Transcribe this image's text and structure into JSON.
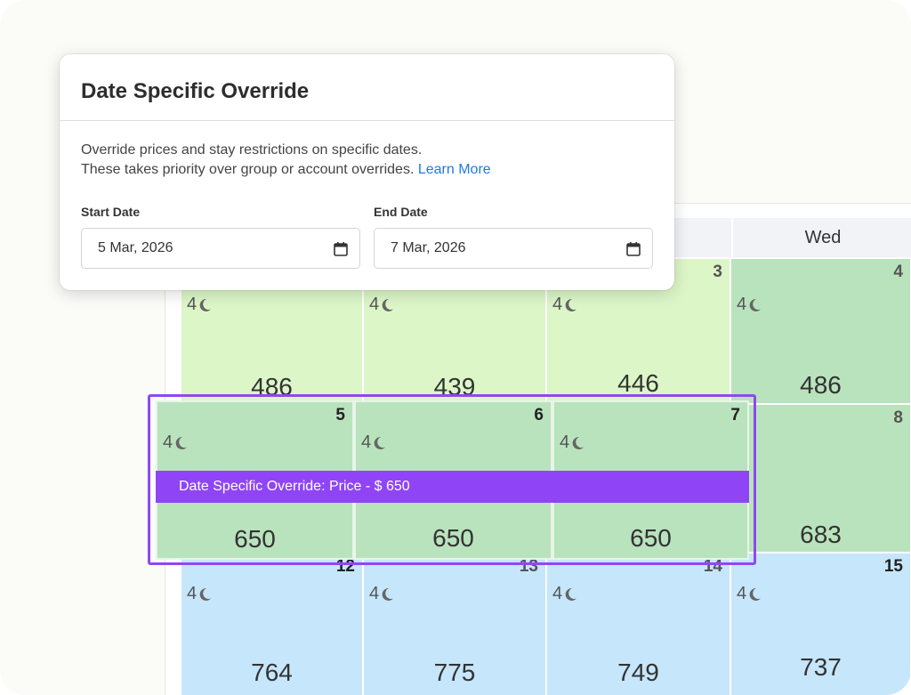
{
  "dialog": {
    "title": "Date Specific Override",
    "description_line1": "Override prices and stay restrictions on specific dates.",
    "description_line2": "These takes priority over group or account overrides.",
    "learn_more": "Learn More",
    "start_label": "Start Date",
    "start_value": "5 Mar, 2026",
    "end_label": "End Date",
    "end_value": "7 Mar, 2026"
  },
  "calendar": {
    "weekday_header": "Wed",
    "min_stay": "4",
    "row1": [
      {
        "day": "",
        "price": "486"
      },
      {
        "day": "",
        "price": "439"
      },
      {
        "day": "3",
        "price": "446"
      },
      {
        "day": "4",
        "price": "486"
      }
    ],
    "row2": [
      {
        "day": "5",
        "price": "650"
      },
      {
        "day": "6",
        "price": "650"
      },
      {
        "day": "7",
        "price": "650"
      },
      {
        "day": "8",
        "price": "683"
      }
    ],
    "row3": [
      {
        "day": "12",
        "price": "764"
      },
      {
        "day": "13",
        "price": "775"
      },
      {
        "day": "14",
        "price": "749"
      },
      {
        "day": "15",
        "price": "737"
      }
    ],
    "override_banner": "Date Specific Override: Price - $ 650"
  },
  "colors": {
    "accent_purple": "#8f45f5",
    "link_blue": "#1f7ae0",
    "cell_lime": "#dcf6c8",
    "cell_green": "#b9e3bd",
    "cell_blue": "#c6e6fb"
  }
}
